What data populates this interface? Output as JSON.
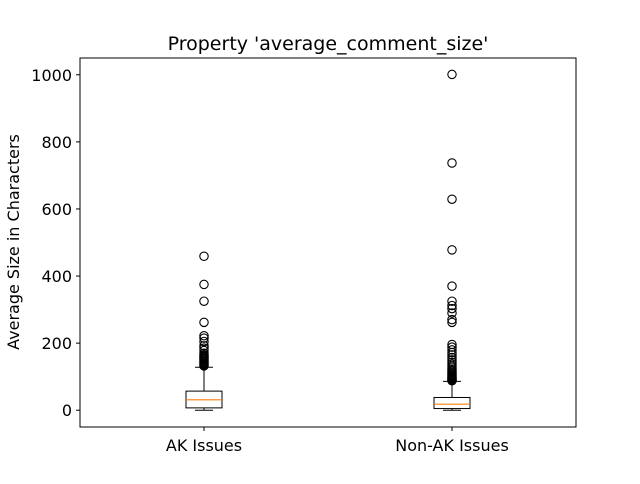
{
  "chart_data": {
    "type": "box",
    "title": "Property 'average_comment_size'",
    "xlabel": "",
    "ylabel": "Average Size in Characters",
    "ylim": [
      -50,
      1050
    ],
    "yticks": [
      0,
      200,
      400,
      600,
      800,
      1000
    ],
    "categories": [
      "AK Issues",
      "Non-AK Issues"
    ],
    "grid": false,
    "colors": {
      "box_edge": "#000000",
      "median": "#ff7f0e",
      "flier": "#000000"
    },
    "boxes": [
      {
        "name": "AK Issues",
        "whisker_low": 0,
        "q1": 7,
        "median": 31,
        "q3": 57,
        "whisker_high": 128,
        "fliers": [
          132,
          135,
          138,
          141,
          144,
          147,
          150,
          153,
          156,
          159,
          162,
          165,
          170,
          178,
          185,
          192,
          205,
          215,
          222,
          262,
          325,
          375,
          459
        ]
      },
      {
        "name": "Non-AK Issues",
        "whisker_low": 0,
        "q1": 5,
        "median": 18,
        "q3": 38,
        "whisker_high": 86,
        "fliers": [
          88,
          90,
          92,
          94,
          96,
          98,
          101,
          104,
          107,
          110,
          113,
          117,
          121,
          126,
          131,
          137,
          143,
          150,
          157,
          165,
          172,
          180,
          188,
          196,
          262,
          270,
          290,
          303,
          312,
          325,
          370,
          478,
          629,
          737,
          1001
        ]
      }
    ]
  }
}
